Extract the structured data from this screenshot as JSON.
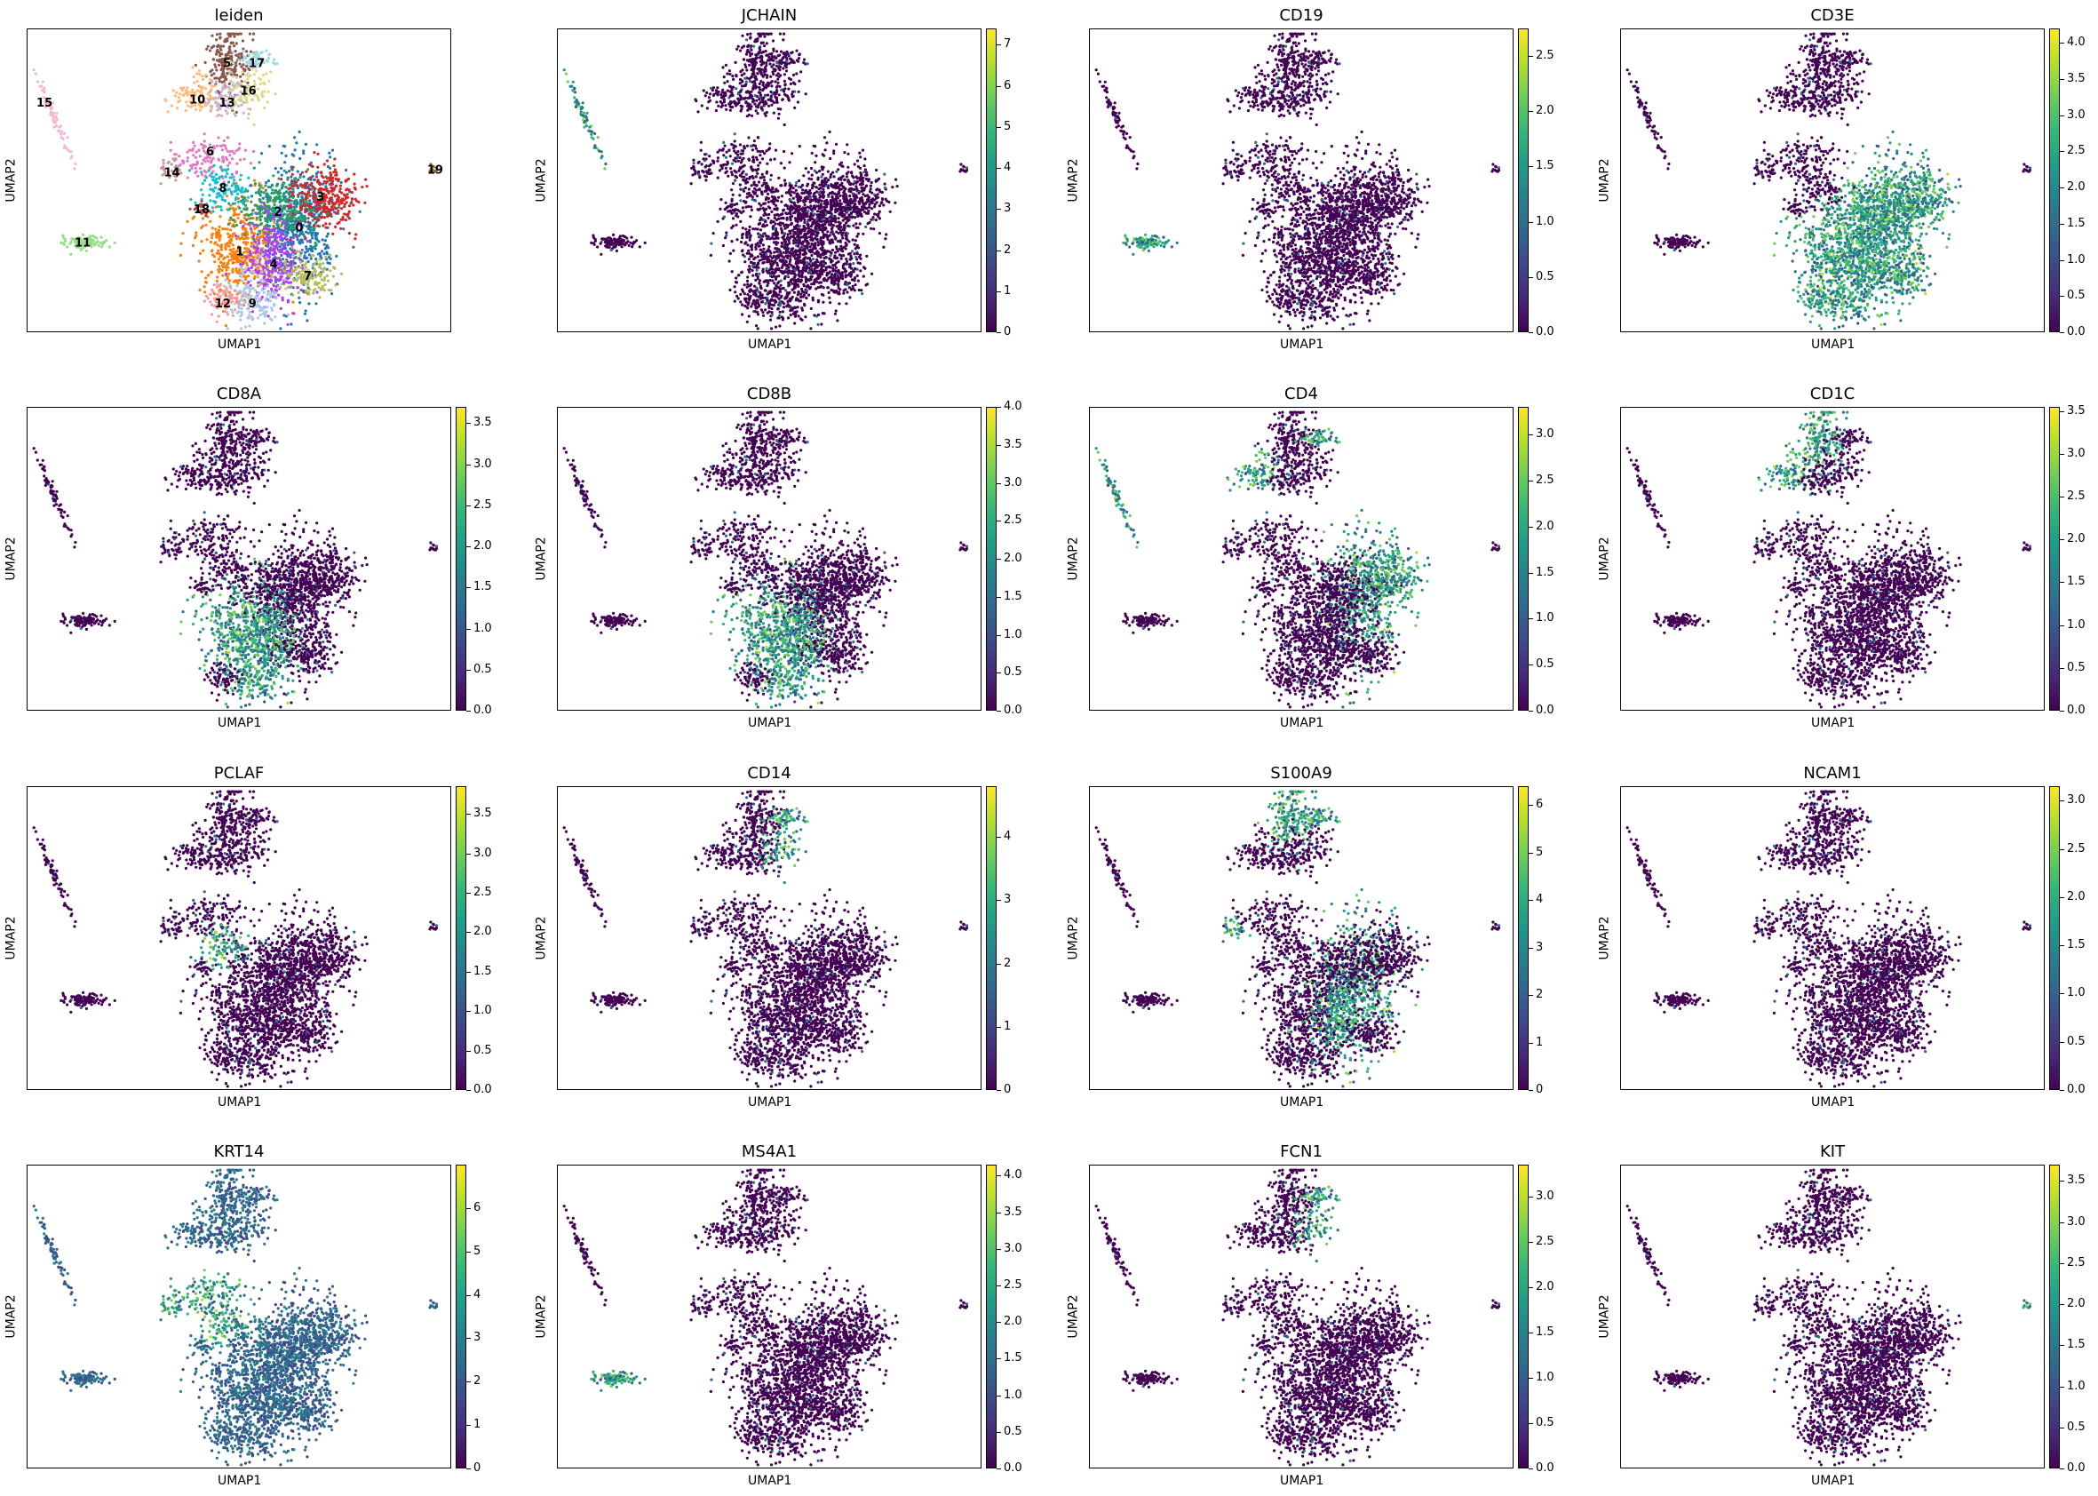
{
  "figure": {
    "xlabel": "UMAP1",
    "ylabel": "UMAP2"
  },
  "colors": {
    "viridis": [
      "#440154",
      "#482878",
      "#3e4989",
      "#31688e",
      "#26828e",
      "#1f9e89",
      "#35b779",
      "#6ece58",
      "#b5de2b",
      "#fde725"
    ],
    "leiden_palette": [
      "#1f77b4",
      "#ff7f0e",
      "#279e68",
      "#d62728",
      "#aa40fc",
      "#8c564b",
      "#e377c2",
      "#b5bd61",
      "#17becf",
      "#aec7e8",
      "#ffbb78",
      "#98df8a",
      "#ff9896",
      "#c5b0d5",
      "#c49c94",
      "#f7b6d2",
      "#dbdb8d",
      "#9edae5",
      "#ad494a",
      "#8c6d31"
    ]
  },
  "chart_data": [
    {
      "type": "scatter",
      "title": "leiden",
      "xlabel": "UMAP1",
      "ylabel": "UMAP2",
      "color_by": "categorical",
      "cluster_labels": [
        {
          "label": "0",
          "x": 0.64,
          "y": 0.35
        },
        {
          "label": "1",
          "x": 0.5,
          "y": 0.27
        },
        {
          "label": "2",
          "x": 0.59,
          "y": 0.4
        },
        {
          "label": "3",
          "x": 0.69,
          "y": 0.45
        },
        {
          "label": "4",
          "x": 0.58,
          "y": 0.23
        },
        {
          "label": "5",
          "x": 0.47,
          "y": 0.89
        },
        {
          "label": "6",
          "x": 0.43,
          "y": 0.6
        },
        {
          "label": "7",
          "x": 0.66,
          "y": 0.19
        },
        {
          "label": "8",
          "x": 0.46,
          "y": 0.48
        },
        {
          "label": "9",
          "x": 0.53,
          "y": 0.1
        },
        {
          "label": "10",
          "x": 0.4,
          "y": 0.77
        },
        {
          "label": "11",
          "x": 0.13,
          "y": 0.3
        },
        {
          "label": "12",
          "x": 0.46,
          "y": 0.1
        },
        {
          "label": "13",
          "x": 0.47,
          "y": 0.76
        },
        {
          "label": "14",
          "x": 0.34,
          "y": 0.53
        },
        {
          "label": "15",
          "x": 0.04,
          "y": 0.76
        },
        {
          "label": "16",
          "x": 0.52,
          "y": 0.8
        },
        {
          "label": "17",
          "x": 0.54,
          "y": 0.89
        },
        {
          "label": "18",
          "x": 0.41,
          "y": 0.41
        },
        {
          "label": "19",
          "x": 0.96,
          "y": 0.54
        }
      ]
    },
    {
      "type": "scatter",
      "title": "JCHAIN",
      "xlabel": "UMAP1",
      "ylabel": "UMAP2",
      "colorbar": {
        "min": 0,
        "max": 7.4,
        "ticks": [
          "0",
          "1",
          "2",
          "3",
          "4",
          "5",
          "6",
          "7"
        ]
      },
      "high_regions": [
        "15"
      ]
    },
    {
      "type": "scatter",
      "title": "CD19",
      "xlabel": "UMAP1",
      "ylabel": "UMAP2",
      "colorbar": {
        "min": 0,
        "max": 2.75,
        "ticks": [
          "0.0",
          "0.5",
          "1.0",
          "1.5",
          "2.0",
          "2.5"
        ]
      },
      "high_regions": [
        "11"
      ]
    },
    {
      "type": "scatter",
      "title": "CD3E",
      "xlabel": "UMAP1",
      "ylabel": "UMAP2",
      "colorbar": {
        "min": 0,
        "max": 4.2,
        "ticks": [
          "0.0",
          "0.5",
          "1.0",
          "1.5",
          "2.0",
          "2.5",
          "3.0",
          "3.5",
          "4.0"
        ]
      },
      "high_regions": [
        "0",
        "1",
        "2",
        "3",
        "4",
        "7",
        "9",
        "12"
      ]
    },
    {
      "type": "scatter",
      "title": "CD8A",
      "xlabel": "UMAP1",
      "ylabel": "UMAP2",
      "colorbar": {
        "min": 0,
        "max": 3.7,
        "ticks": [
          "0.0",
          "0.5",
          "1.0",
          "1.5",
          "2.0",
          "2.5",
          "3.0",
          "3.5"
        ]
      },
      "high_regions": [
        "1",
        "4",
        "9"
      ]
    },
    {
      "type": "scatter",
      "title": "CD8B",
      "xlabel": "UMAP1",
      "ylabel": "UMAP2",
      "colorbar": {
        "min": 0,
        "max": 4.0,
        "ticks": [
          "0.0",
          "0.5",
          "1.0",
          "1.5",
          "2.0",
          "2.5",
          "3.0",
          "3.5",
          "4.0"
        ]
      },
      "high_regions": [
        "1",
        "4",
        "9"
      ]
    },
    {
      "type": "scatter",
      "title": "CD4",
      "xlabel": "UMAP1",
      "ylabel": "UMAP2",
      "colorbar": {
        "min": 0,
        "max": 3.3,
        "ticks": [
          "0.0",
          "0.5",
          "1.0",
          "1.5",
          "2.0",
          "2.5",
          "3.0"
        ]
      },
      "high_regions": [
        "0",
        "3",
        "10",
        "17",
        "15"
      ]
    },
    {
      "type": "scatter",
      "title": "CD1C",
      "xlabel": "UMAP1",
      "ylabel": "UMAP2",
      "colorbar": {
        "min": 0,
        "max": 3.55,
        "ticks": [
          "0.0",
          "0.5",
          "1.0",
          "1.5",
          "2.0",
          "2.5",
          "3.0",
          "3.5"
        ]
      },
      "high_regions": [
        "10",
        "5"
      ]
    },
    {
      "type": "scatter",
      "title": "PCLAF",
      "xlabel": "UMAP1",
      "ylabel": "UMAP2",
      "colorbar": {
        "min": 0,
        "max": 3.85,
        "ticks": [
          "0.0",
          "0.5",
          "1.0",
          "1.5",
          "2.0",
          "2.5",
          "3.0",
          "3.5"
        ]
      },
      "high_regions": [
        "8"
      ]
    },
    {
      "type": "scatter",
      "title": "CD14",
      "xlabel": "UMAP1",
      "ylabel": "UMAP2",
      "colorbar": {
        "min": 0,
        "max": 4.8,
        "ticks": [
          "0",
          "1",
          "2",
          "3",
          "4"
        ]
      },
      "high_regions": [
        "17",
        "16"
      ]
    },
    {
      "type": "scatter",
      "title": "S100A9",
      "xlabel": "UMAP1",
      "ylabel": "UMAP2",
      "colorbar": {
        "min": 0,
        "max": 6.4,
        "ticks": [
          "0",
          "1",
          "2",
          "3",
          "4",
          "5",
          "6"
        ]
      },
      "high_regions": [
        "14",
        "17",
        "5",
        "0",
        "4"
      ]
    },
    {
      "type": "scatter",
      "title": "NCAM1",
      "xlabel": "UMAP1",
      "ylabel": "UMAP2",
      "colorbar": {
        "min": 0,
        "max": 3.15,
        "ticks": [
          "0.0",
          "0.5",
          "1.0",
          "1.5",
          "2.0",
          "2.5",
          "3.0"
        ]
      },
      "high_regions": []
    },
    {
      "type": "scatter",
      "title": "KRT14",
      "xlabel": "UMAP1",
      "ylabel": "UMAP2",
      "colorbar": {
        "min": 0,
        "max": 7.0,
        "ticks": [
          "0",
          "1",
          "2",
          "3",
          "4",
          "5",
          "6"
        ]
      },
      "high_regions": [
        "6",
        "14",
        "8",
        "all"
      ]
    },
    {
      "type": "scatter",
      "title": "MS4A1",
      "xlabel": "UMAP1",
      "ylabel": "UMAP2",
      "colorbar": {
        "min": 0,
        "max": 4.15,
        "ticks": [
          "0.0",
          "0.5",
          "1.0",
          "1.5",
          "2.0",
          "2.5",
          "3.0",
          "3.5",
          "4.0"
        ]
      },
      "high_regions": [
        "11"
      ]
    },
    {
      "type": "scatter",
      "title": "FCN1",
      "xlabel": "UMAP1",
      "ylabel": "UMAP2",
      "colorbar": {
        "min": 0,
        "max": 3.35,
        "ticks": [
          "0.0",
          "0.5",
          "1.0",
          "1.5",
          "2.0",
          "2.5",
          "3.0"
        ]
      },
      "high_regions": [
        "17",
        "16"
      ]
    },
    {
      "type": "scatter",
      "title": "KIT",
      "xlabel": "UMAP1",
      "ylabel": "UMAP2",
      "colorbar": {
        "min": 0,
        "max": 3.7,
        "ticks": [
          "0.0",
          "0.5",
          "1.0",
          "1.5",
          "2.0",
          "2.5",
          "3.0",
          "3.5"
        ]
      },
      "high_regions": [
        "19"
      ]
    }
  ]
}
